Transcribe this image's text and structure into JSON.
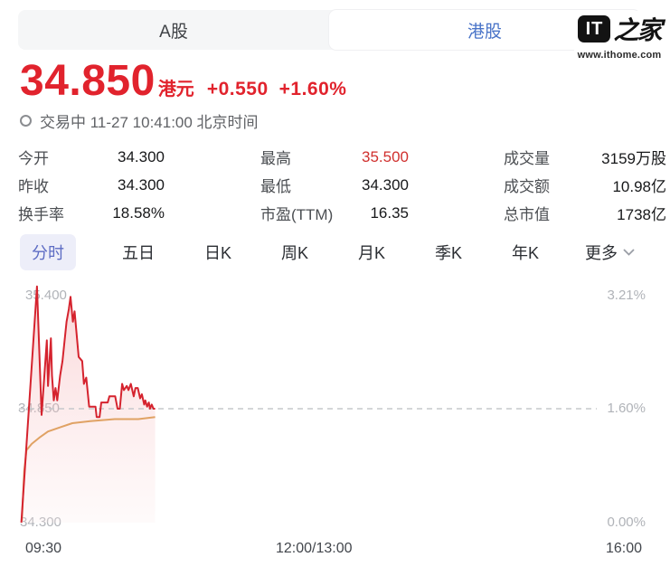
{
  "market_tabs": {
    "a_share": "A股",
    "hk_share": "港股"
  },
  "logo": {
    "mark": "IT",
    "suffix": "之家",
    "url": "www.ithome.com"
  },
  "quote": {
    "price": "34.850",
    "currency": "港元",
    "change": "+0.550",
    "change_pct": "+1.60%"
  },
  "status": {
    "trading_text": "交易中 11-27 10:41:00 北京时间"
  },
  "stats": {
    "rows": [
      {
        "c1l": "今开",
        "c1v": "34.300",
        "c2l": "最高",
        "c2v": "35.500",
        "c3l": "成交量",
        "c3v": "3159万股"
      },
      {
        "c1l": "昨收",
        "c1v": "34.300",
        "c2l": "最低",
        "c2v": "34.300",
        "c3l": "成交额",
        "c3v": "10.98亿"
      },
      {
        "c1l": "换手率",
        "c1v": "18.58%",
        "c2l": "市盈(TTM)",
        "c2v": "16.35",
        "c3l": "总市值",
        "c3v": "1738亿"
      }
    ]
  },
  "period_tabs": {
    "items": [
      "分时",
      "五日",
      "日K",
      "周K",
      "月K",
      "季K",
      "年K"
    ],
    "more": "更多"
  },
  "colors": {
    "up_red": "#e1232d",
    "hk_blue": "#4a74c8",
    "accent_purple": "#5d6cc4",
    "price_line": "#d5232e",
    "avg_line": "#e0a264",
    "dashed_line": "#c6c8cc"
  },
  "chart_data": {
    "type": "line",
    "title": "分时",
    "x_labels": [
      "09:30",
      "12:00/13:00",
      "16:00"
    ],
    "y_left": [
      "35.400",
      "34.850",
      "34.300"
    ],
    "y_right": [
      "3.21%",
      "1.60%",
      "0.00%"
    ],
    "ylim": [
      34.3,
      35.4
    ],
    "prev_close": 34.3,
    "dashed_line_price": 34.85,
    "grid": false,
    "legend": "none",
    "series": [
      {
        "name": "price",
        "color": "#d5232e",
        "points": [
          [
            0.004,
            34.3
          ],
          [
            0.031,
            35.44
          ],
          [
            0.039,
            34.82
          ],
          [
            0.048,
            35.18
          ],
          [
            0.05,
            34.96
          ],
          [
            0.055,
            35.19
          ],
          [
            0.057,
            35.01
          ],
          [
            0.06,
            34.89
          ],
          [
            0.063,
            34.95
          ],
          [
            0.066,
            34.89
          ],
          [
            0.071,
            35.01
          ],
          [
            0.075,
            35.08
          ],
          [
            0.082,
            35.27
          ],
          [
            0.086,
            35.33
          ],
          [
            0.089,
            35.39
          ],
          [
            0.093,
            35.27
          ],
          [
            0.096,
            35.32
          ],
          [
            0.103,
            35.1
          ],
          [
            0.109,
            35.08
          ],
          [
            0.112,
            34.97
          ],
          [
            0.116,
            35.0
          ],
          [
            0.121,
            34.86
          ],
          [
            0.132,
            34.86
          ],
          [
            0.134,
            34.81
          ],
          [
            0.139,
            34.81
          ],
          [
            0.142,
            34.88
          ],
          [
            0.153,
            34.88
          ],
          [
            0.156,
            34.91
          ],
          [
            0.166,
            34.91
          ],
          [
            0.17,
            34.85
          ],
          [
            0.174,
            34.85
          ],
          [
            0.178,
            34.97
          ],
          [
            0.181,
            34.94
          ],
          [
            0.186,
            34.96
          ],
          [
            0.189,
            34.94
          ],
          [
            0.193,
            34.97
          ],
          [
            0.198,
            34.91
          ],
          [
            0.201,
            34.95
          ],
          [
            0.205,
            34.95
          ],
          [
            0.209,
            34.9
          ],
          [
            0.212,
            34.92
          ],
          [
            0.216,
            34.87
          ],
          [
            0.218,
            34.89
          ],
          [
            0.221,
            34.86
          ],
          [
            0.224,
            34.88
          ],
          [
            0.226,
            34.85
          ],
          [
            0.229,
            34.87
          ],
          [
            0.232,
            34.85
          ],
          [
            0.235,
            34.85
          ]
        ]
      },
      {
        "name": "avg",
        "color": "#e0a264",
        "points": [
          [
            0.005,
            34.31
          ],
          [
            0.009,
            34.55
          ],
          [
            0.013,
            34.65
          ],
          [
            0.022,
            34.68
          ],
          [
            0.035,
            34.71
          ],
          [
            0.05,
            34.74
          ],
          [
            0.071,
            34.76
          ],
          [
            0.092,
            34.78
          ],
          [
            0.123,
            34.79
          ],
          [
            0.165,
            34.8
          ],
          [
            0.206,
            34.8
          ],
          [
            0.235,
            34.81
          ]
        ]
      }
    ]
  }
}
